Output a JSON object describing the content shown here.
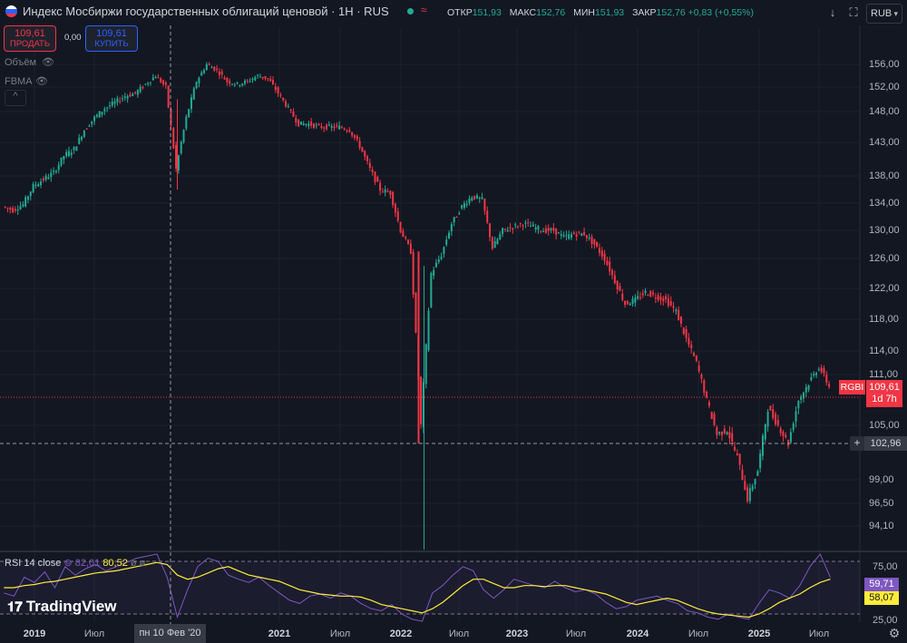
{
  "header": {
    "title": "Индекс Мосбиржи государственных облигаций ценовой · 1Н · RUS",
    "market_symbol": "≈",
    "ohlc": [
      {
        "key": "ОТКР",
        "value": "151,93"
      },
      {
        "key": "МАКС",
        "value": "152,76"
      },
      {
        "key": "МИН",
        "value": "151,93"
      },
      {
        "key": "ЗАКР",
        "value": "152,76 +0,83 (+0,55%)"
      }
    ],
    "currency": "RUB",
    "colors": {
      "up": "#22ab94",
      "down": "#f23645",
      "accent": "#2962ff",
      "background": "#131722"
    }
  },
  "trade": {
    "sell_price": "109,61",
    "sell_label": "ПРОДАТЬ",
    "spread": "0,00",
    "buy_price": "109,61",
    "buy_label": "КУПИТЬ"
  },
  "indicators": {
    "volume_label": "Объём",
    "fbma_label": "FBMA"
  },
  "price_axis": {
    "ticks": [
      "156,00",
      "152,00",
      "148,00",
      "143,00",
      "138,00",
      "134,00",
      "130,00",
      "126,00",
      "122,00",
      "118,00",
      "114,00",
      "111,00",
      "105,00",
      "99,00",
      "96,50",
      "94,10"
    ],
    "current_symbol": "RGBI",
    "current_price": "109,61",
    "current_countdown": "1d 7h",
    "crosshair_price": "102,96"
  },
  "time_axis": {
    "ticks": [
      "2019",
      "Июл",
      "2021",
      "Июл",
      "2022",
      "Июл",
      "2023",
      "Июл",
      "2024",
      "Июл",
      "2025",
      "Июл"
    ],
    "crosshair_label": "пн 10 Фев '20"
  },
  "rsi": {
    "label": "RSI 14 close",
    "rsi_value": "82,01",
    "ma_value": "80,52",
    "extra": "ø ø",
    "ticks": [
      "75,00",
      "25,00"
    ],
    "tag_rsi": "59,71",
    "tag_ma": "58,07"
  },
  "branding": {
    "logo_text": "TradingView"
  },
  "chart_data": {
    "type": "candlestick",
    "title": "Индекс Мосбиржи государственных облигаций ценовой",
    "symbol": "RGBI",
    "timeframe": "1Н",
    "ylim": [
      93,
      159
    ],
    "x_range": [
      "2018-10",
      "2025-10"
    ],
    "closes": [
      {
        "date": "2018-10",
        "value": 133.5
      },
      {
        "date": "2018-11",
        "value": 133.0
      },
      {
        "date": "2018-12",
        "value": 133.8
      },
      {
        "date": "2019-01",
        "value": 136.5
      },
      {
        "date": "2019-02",
        "value": 137.5
      },
      {
        "date": "2019-03",
        "value": 138.5
      },
      {
        "date": "2019-04",
        "value": 141.0
      },
      {
        "date": "2019-05",
        "value": 142.0
      },
      {
        "date": "2019-06",
        "value": 145.0
      },
      {
        "date": "2019-07",
        "value": 147.0
      },
      {
        "date": "2019-08",
        "value": 148.5
      },
      {
        "date": "2019-09",
        "value": 149.5
      },
      {
        "date": "2019-10",
        "value": 150.5
      },
      {
        "date": "2019-11",
        "value": 151.0
      },
      {
        "date": "2019-12",
        "value": 152.5
      },
      {
        "date": "2020-01",
        "value": 154.0
      },
      {
        "date": "2020-02",
        "value": 152.0
      },
      {
        "date": "2020-03",
        "value": 139.0
      },
      {
        "date": "2020-04",
        "value": 147.0
      },
      {
        "date": "2020-05",
        "value": 153.0
      },
      {
        "date": "2020-06",
        "value": 156.0
      },
      {
        "date": "2020-07",
        "value": 155.0
      },
      {
        "date": "2020-08",
        "value": 153.0
      },
      {
        "date": "2020-09",
        "value": 152.5
      },
      {
        "date": "2020-10",
        "value": 153.0
      },
      {
        "date": "2020-11",
        "value": 154.0
      },
      {
        "date": "2020-12",
        "value": 153.5
      },
      {
        "date": "2021-01",
        "value": 151.0
      },
      {
        "date": "2021-02",
        "value": 148.5
      },
      {
        "date": "2021-03",
        "value": 146.0
      },
      {
        "date": "2021-04",
        "value": 146.0
      },
      {
        "date": "2021-05",
        "value": 145.5
      },
      {
        "date": "2021-06",
        "value": 145.5
      },
      {
        "date": "2021-07",
        "value": 145.5
      },
      {
        "date": "2021-08",
        "value": 145.0
      },
      {
        "date": "2021-09",
        "value": 142.5
      },
      {
        "date": "2021-10",
        "value": 139.0
      },
      {
        "date": "2021-11",
        "value": 136.0
      },
      {
        "date": "2021-12",
        "value": 135.5
      },
      {
        "date": "2022-01",
        "value": 130.0
      },
      {
        "date": "2022-02",
        "value": 127.0
      },
      {
        "date": "2022-03",
        "value": 105.0
      },
      {
        "date": "2022-04",
        "value": 124.0
      },
      {
        "date": "2022-05",
        "value": 126.5
      },
      {
        "date": "2022-06",
        "value": 131.0
      },
      {
        "date": "2022-07",
        "value": 133.5
      },
      {
        "date": "2022-08",
        "value": 135.0
      },
      {
        "date": "2022-09",
        "value": 134.5
      },
      {
        "date": "2022-10",
        "value": 127.5
      },
      {
        "date": "2022-11",
        "value": 130.0
      },
      {
        "date": "2022-12",
        "value": 130.5
      },
      {
        "date": "2023-01",
        "value": 131.0
      },
      {
        "date": "2023-02",
        "value": 130.5
      },
      {
        "date": "2023-03",
        "value": 130.0
      },
      {
        "date": "2023-04",
        "value": 130.0
      },
      {
        "date": "2023-05",
        "value": 129.0
      },
      {
        "date": "2023-06",
        "value": 129.5
      },
      {
        "date": "2023-07",
        "value": 129.5
      },
      {
        "date": "2023-08",
        "value": 128.0
      },
      {
        "date": "2023-09",
        "value": 126.0
      },
      {
        "date": "2023-10",
        "value": 123.0
      },
      {
        "date": "2023-11",
        "value": 120.0
      },
      {
        "date": "2023-12",
        "value": 120.5
      },
      {
        "date": "2024-01",
        "value": 121.5
      },
      {
        "date": "2024-02",
        "value": 121.0
      },
      {
        "date": "2024-03",
        "value": 120.5
      },
      {
        "date": "2024-04",
        "value": 119.0
      },
      {
        "date": "2024-05",
        "value": 115.5
      },
      {
        "date": "2024-06",
        "value": 112.5
      },
      {
        "date": "2024-07",
        "value": 108.0
      },
      {
        "date": "2024-08",
        "value": 104.0
      },
      {
        "date": "2024-09",
        "value": 104.5
      },
      {
        "date": "2024-10",
        "value": 101.5
      },
      {
        "date": "2024-11",
        "value": 97.0
      },
      {
        "date": "2024-12",
        "value": 100.0
      },
      {
        "date": "2025-01",
        "value": 107.0
      },
      {
        "date": "2025-02",
        "value": 105.0
      },
      {
        "date": "2025-03",
        "value": 103.0
      },
      {
        "date": "2025-04",
        "value": 108.0
      },
      {
        "date": "2025-05",
        "value": 110.0
      },
      {
        "date": "2025-06",
        "value": 112.0
      },
      {
        "date": "2025-07",
        "value": 109.61
      }
    ],
    "rsi_series": {
      "name": "RSI 14 close",
      "levels": [
        75,
        25
      ],
      "values": [
        45,
        42,
        60,
        55,
        65,
        50,
        70,
        62,
        68,
        72,
        66,
        70,
        74,
        78,
        80,
        82,
        60,
        22,
        48,
        70,
        78,
        75,
        62,
        58,
        55,
        60,
        52,
        45,
        38,
        35,
        42,
        44,
        40,
        45,
        42,
        35,
        30,
        28,
        34,
        25,
        20,
        18,
        45,
        52,
        62,
        70,
        66,
        48,
        40,
        48,
        58,
        55,
        52,
        50,
        56,
        50,
        46,
        48,
        44,
        36,
        30,
        32,
        38,
        40,
        42,
        38,
        35,
        28,
        26,
        22,
        20,
        25,
        22,
        20,
        35,
        48,
        45,
        40,
        52,
        70,
        82,
        59.71
      ],
      "ma_values": [
        50,
        50,
        52,
        53,
        55,
        56,
        58,
        60,
        62,
        64,
        65,
        66,
        68,
        70,
        72,
        74,
        72,
        62,
        58,
        60,
        64,
        68,
        70,
        66,
        62,
        60,
        58,
        56,
        52,
        48,
        46,
        44,
        43,
        42,
        42,
        41,
        38,
        34,
        32,
        30,
        28,
        26,
        30,
        36,
        44,
        52,
        58,
        58,
        54,
        50,
        50,
        52,
        52,
        51,
        52,
        52,
        50,
        48,
        46,
        44,
        40,
        36,
        34,
        36,
        38,
        40,
        38,
        34,
        30,
        27,
        25,
        24,
        23,
        22,
        25,
        30,
        36,
        40,
        44,
        50,
        55,
        58.07
      ]
    }
  }
}
